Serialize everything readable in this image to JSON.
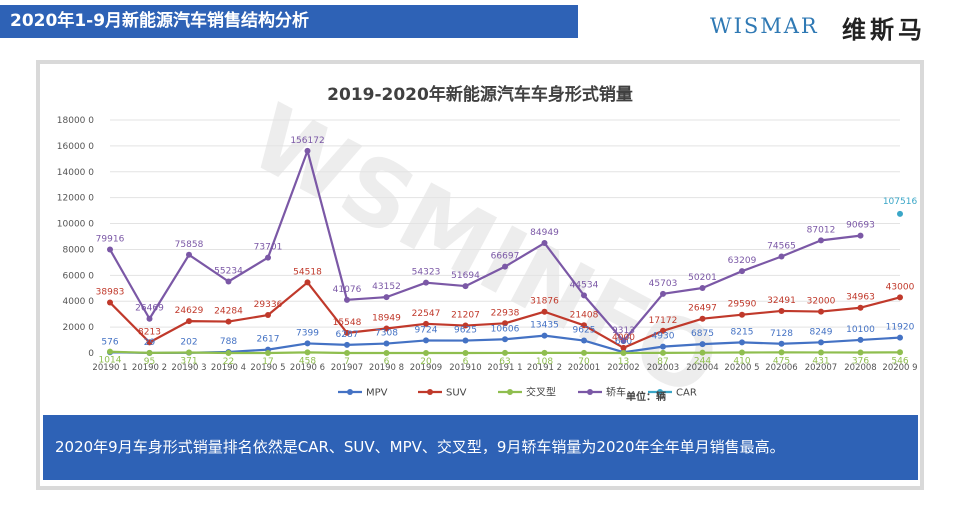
{
  "header": {
    "title": "2020年1-9月新能源汽车销售结构分析"
  },
  "logo": {
    "text": "WISMAR",
    "cn": "维斯马"
  },
  "watermark": "WSMINFO",
  "note": "2020年9月车身形式销量排名依然是CAR、SUV、MPV、交叉型，9月轿车销量为2020年全年单月销售最高。",
  "colors": {
    "header_bg": "#2e62b6",
    "note_bg": "#2e62b6",
    "mpv": "#4472c4",
    "suv": "#c0392b",
    "cross": "#8fbe4f",
    "sedan": "#7b58a6",
    "car": "#3aa6c7"
  },
  "chart_data": {
    "type": "line",
    "title": "2019-2020年新能源汽车车身形式销量",
    "unit_label": "单位：辆",
    "categories": [
      "201901",
      "201902",
      "201903",
      "201904",
      "201905",
      "201906",
      "201907",
      "201908",
      "201909",
      "201910",
      "201911",
      "201912",
      "202001",
      "202002",
      "202003",
      "202004",
      "202005",
      "202006",
      "202007",
      "202008",
      "202009"
    ],
    "ylim": [
      0,
      180000
    ],
    "yticks": [
      0,
      20000,
      40000,
      60000,
      80000,
      100000,
      120000,
      140000,
      160000,
      180000
    ],
    "ytick_labels": [
      "0",
      "2000 0",
      "4000 0",
      "6000 0",
      "8000 0",
      "10000 0",
      "12000 0",
      "14000 0",
      "16000 0",
      "18000 0"
    ],
    "xtick_labels": [
      "20190 1",
      "20190 2",
      "20190 3",
      "20190 4",
      "20190 5",
      "20190 6",
      "201907",
      "20190 8",
      "201909",
      "201910",
      "20191 1",
      "20191 2",
      "202001",
      "202002",
      "202003",
      "202004",
      "20200 5",
      "202006",
      "202007",
      "202008",
      "20200 9"
    ],
    "legend_position": "bottom",
    "grid": true,
    "series": [
      {
        "name": "MPV",
        "color": "#4472c4",
        "values": [
          576,
          29,
          202,
          788,
          2617,
          7399,
          6287,
          7308,
          9724,
          9625,
          10606,
          13435,
          9625,
          600,
          4930,
          6875,
          8215,
          7128,
          8249,
          10100,
          11920
        ],
        "labels": [
          "576",
          "29",
          "202",
          "788",
          "2617",
          "7399",
          "6287",
          "7308",
          "9724",
          "9625",
          "10606",
          "13435",
          "9625",
          "600",
          "4930",
          "6875",
          "8215",
          "7128",
          "8249",
          "10100",
          "11920"
        ]
      },
      {
        "name": "SUV",
        "color": "#c0392b",
        "values": [
          38983,
          8213,
          24629,
          24284,
          29336,
          54518,
          15548,
          18949,
          22547,
          21207,
          22938,
          31876,
          21408,
          4000,
          17172,
          26497,
          29590,
          32491,
          32000,
          34963,
          43000
        ],
        "labels": [
          "38983",
          "8213",
          "24629",
          "24284",
          "29336",
          "54518",
          "15548",
          "18949",
          "22547",
          "21207",
          "22938",
          "31876",
          "21408",
          "4000",
          "17172",
          "26497",
          "29590",
          "32491",
          "32000",
          "34963",
          "43000"
        ]
      },
      {
        "name": "交叉型",
        "color": "#8fbe4f",
        "values": [
          1014,
          95,
          371,
          22,
          17,
          458,
          7,
          6,
          20,
          6,
          63,
          108,
          70,
          13,
          87,
          244,
          410,
          475,
          431,
          376,
          546
        ],
        "labels": [
          "1014",
          "95",
          "371",
          "22",
          "17",
          "458",
          "7",
          "6",
          "20",
          "6",
          "63",
          "108",
          "70",
          "13",
          "87",
          "244",
          "410",
          "475",
          "431",
          "376",
          "546"
        ]
      },
      {
        "name": "轿车",
        "color": "#7b58a6",
        "values": [
          79916,
          26469,
          75858,
          55234,
          73701,
          156172,
          41076,
          43152,
          54323,
          51694,
          66697,
          84949,
          44534,
          9313,
          45703,
          50201,
          63209,
          74565,
          87012,
          90693,
          null
        ],
        "labels": [
          "79916",
          "26469",
          "75858",
          "55234",
          "73701",
          "156172",
          "41076",
          "43152",
          "54323",
          "51694",
          "66697",
          "84949",
          "44534",
          "9313",
          "45703",
          "50201",
          "63209",
          "74565",
          "87012",
          "90693",
          ""
        ]
      },
      {
        "name": "CAR",
        "color": "#3aa6c7",
        "values": [
          null,
          null,
          null,
          null,
          null,
          null,
          null,
          null,
          null,
          null,
          null,
          null,
          null,
          null,
          null,
          null,
          null,
          null,
          null,
          null,
          107516
        ],
        "labels": [
          "",
          "",
          "",
          "",
          "",
          "",
          "",
          "",
          "",
          "",
          "",
          "",
          "",
          "",
          "",
          "",
          "",
          "",
          "",
          "",
          "107516"
        ]
      }
    ]
  }
}
